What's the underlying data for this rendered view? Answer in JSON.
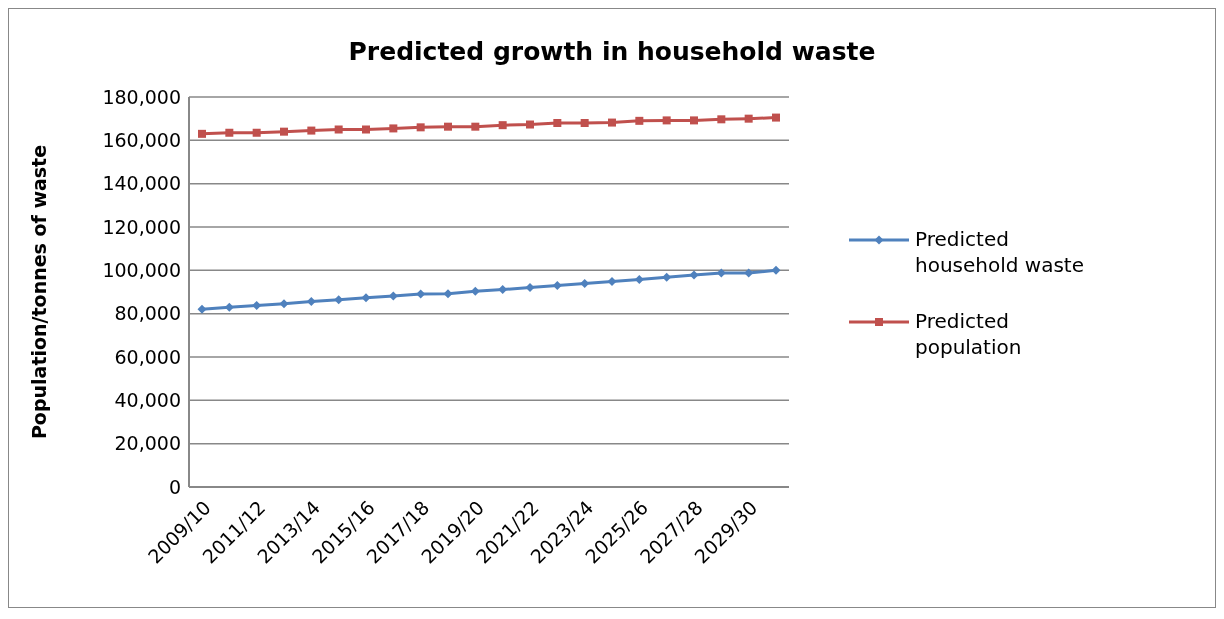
{
  "chart_data": {
    "type": "line",
    "title": "Predicted growth in household waste",
    "ylabel": "Population/tonnes of waste",
    "categories": [
      "2009/10",
      null,
      "2011/12",
      null,
      "2013/14",
      null,
      "2015/16",
      null,
      "2017/18",
      null,
      "2019/20",
      null,
      "2021/22",
      null,
      "2023/24",
      null,
      "2025/26",
      null,
      "2027/28",
      null,
      "2029/30",
      null
    ],
    "series": [
      {
        "name": "Predicted household waste",
        "color": "#4f81bd",
        "marker": "diamond",
        "values": [
          82000,
          83000,
          83800,
          84600,
          85600,
          86400,
          87300,
          88200,
          89100,
          89200,
          90300,
          91100,
          92100,
          93000,
          93900,
          94900,
          95800,
          96800,
          97800,
          98800,
          98800,
          100000
        ]
      },
      {
        "name": "Predicted population",
        "color": "#c0504d",
        "marker": "square",
        "values": [
          163000,
          163500,
          163500,
          164000,
          164500,
          165000,
          165000,
          165500,
          166000,
          166300,
          166300,
          167000,
          167300,
          168000,
          168000,
          168200,
          169000,
          169200,
          169200,
          169700,
          170000,
          170500
        ]
      }
    ],
    "ylim": [
      0,
      180000
    ],
    "yticks": [
      0,
      {
        "value": 20000,
        "label": "20,000"
      },
      {
        "value": 40000,
        "label": "40,000"
      },
      {
        "value": 60000,
        "label": "60,000"
      },
      {
        "value": 80000,
        "label": "80,000"
      },
      {
        "value": 100000,
        "label": "100,000"
      },
      {
        "value": 120000,
        "label": "120,000"
      },
      {
        "value": 140000,
        "label": "140,000"
      },
      {
        "value": 160000,
        "label": "160,000"
      },
      {
        "value": 180000,
        "label": "180,000"
      }
    ],
    "grid": "y",
    "legend": "right",
    "line_style": "solid"
  }
}
